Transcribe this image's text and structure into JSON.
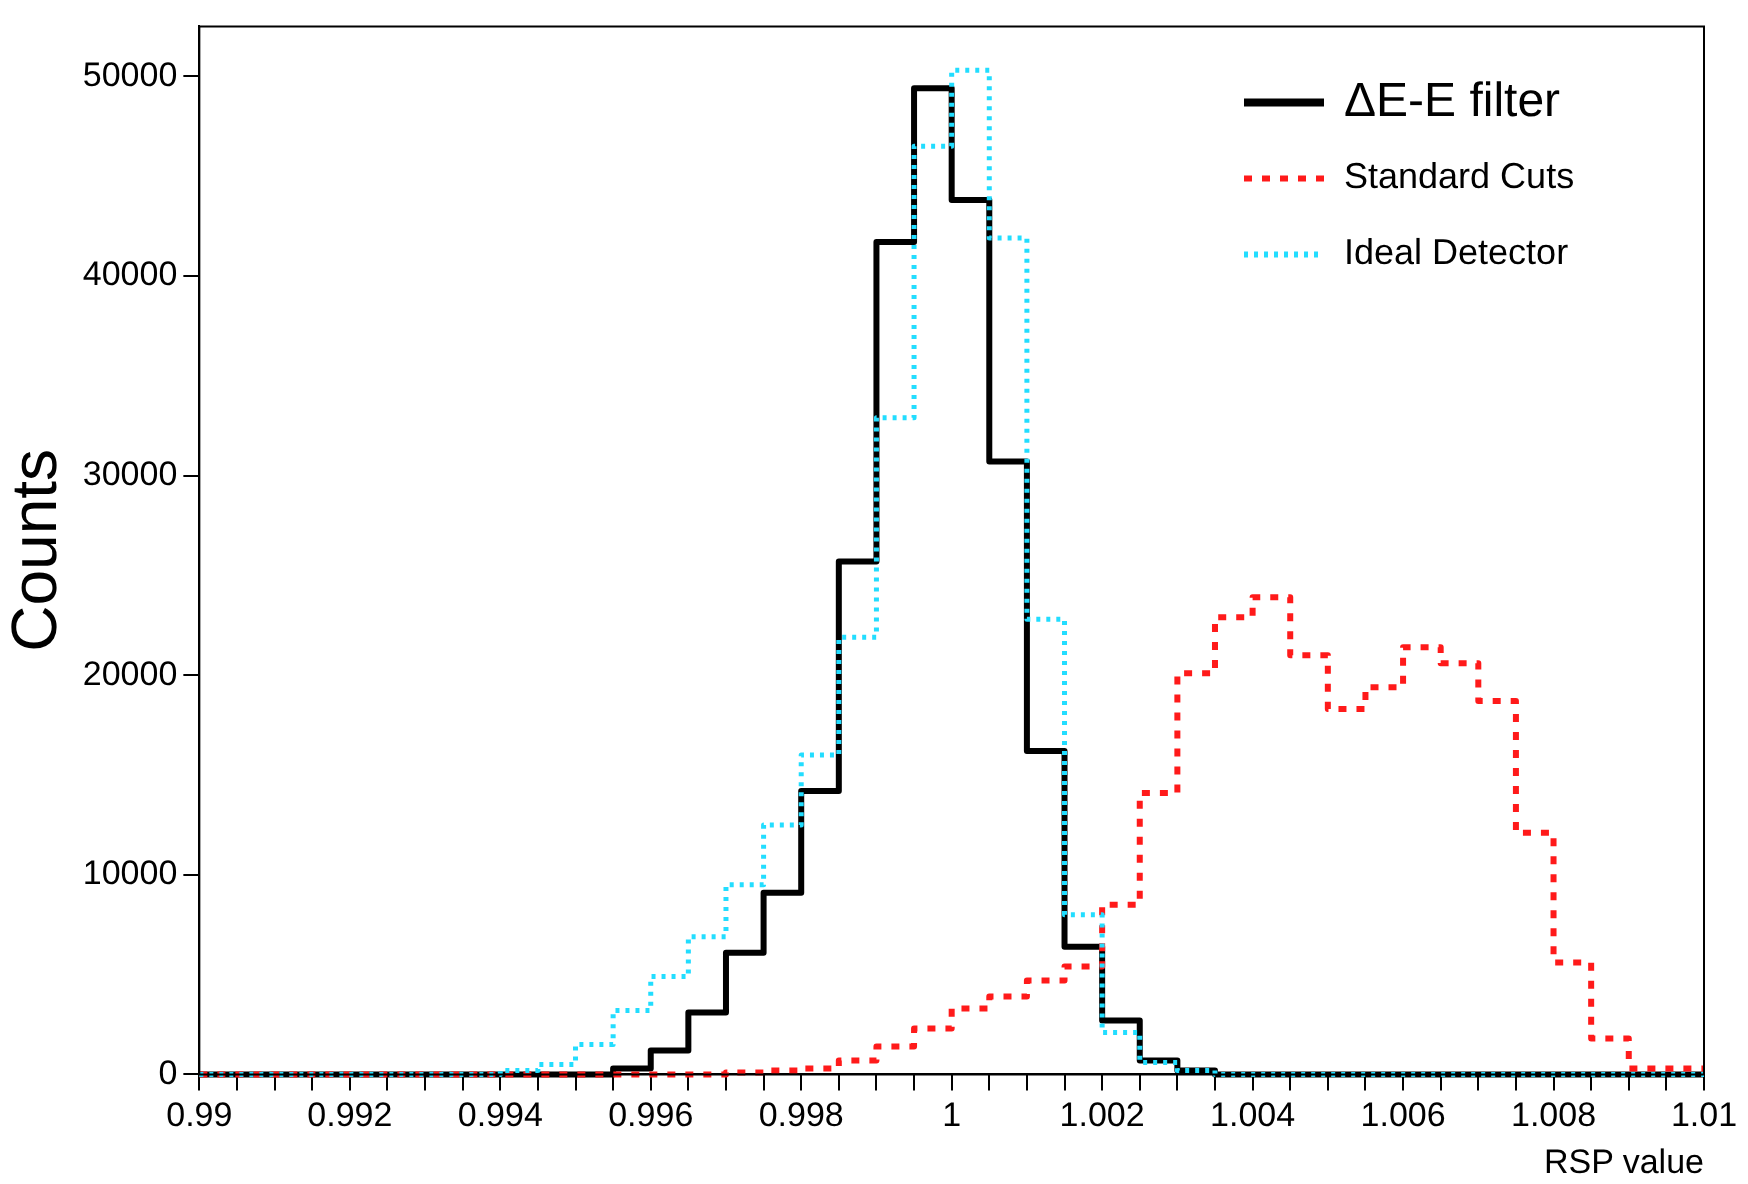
{
  "chart_data": {
    "type": "step",
    "xlabel": "RSP value",
    "ylabel": "Counts",
    "x": [
      0.99,
      0.9905,
      0.991,
      0.9915,
      0.992,
      0.9925,
      0.993,
      0.9935,
      0.994,
      0.9945,
      0.995,
      0.9955,
      0.996,
      0.9965,
      0.997,
      0.9975,
      0.998,
      0.9985,
      0.999,
      0.9995,
      1,
      1.0005,
      1.001,
      1.0015,
      1.002,
      1.0025,
      1.003,
      1.0035,
      1.004,
      1.0045,
      1.005,
      1.0055,
      1.006,
      1.0065,
      1.007,
      1.0075,
      1.008,
      1.0085,
      1.009,
      1.0095,
      1.01
    ],
    "series": [
      {
        "name": "ΔE-E filter",
        "color": "#000000",
        "line_style": "solid",
        "values": [
          0,
          0,
          0,
          0,
          0,
          0,
          0,
          0,
          0,
          0,
          0,
          0,
          300,
          1200,
          3100,
          6100,
          9100,
          14200,
          25700,
          41700,
          49400,
          43800,
          30700,
          16200,
          6400,
          2700,
          700,
          200,
          0,
          0,
          0,
          0,
          0,
          0,
          0,
          0,
          0,
          0,
          0,
          0,
          0
        ]
      },
      {
        "name": "Standard Cuts",
        "color": "#ff1a1a",
        "line_style": "dashed",
        "values": [
          0,
          0,
          0,
          0,
          0,
          0,
          0,
          0,
          0,
          0,
          0,
          0,
          0,
          0,
          0,
          100,
          200,
          300,
          700,
          1400,
          2300,
          3300,
          3900,
          4700,
          5400,
          8500,
          14100,
          20100,
          22900,
          23900,
          21000,
          18300,
          19400,
          21400,
          20600,
          18700,
          12100,
          5600,
          1800,
          300,
          300
        ]
      },
      {
        "name": "Ideal Detector",
        "color": "#22ddff",
        "line_style": "dotted",
        "values": [
          0,
          0,
          0,
          0,
          0,
          0,
          0,
          0,
          0,
          200,
          500,
          1500,
          3200,
          4900,
          6900,
          9500,
          12500,
          16000,
          21900,
          32900,
          46500,
          50300,
          41900,
          22800,
          8000,
          2100,
          600,
          200,
          0,
          0,
          0,
          0,
          0,
          0,
          0,
          0,
          0,
          0,
          0,
          0,
          0
        ]
      }
    ],
    "xlim": [
      0.99,
      1.01
    ],
    "xticks": [
      0.99,
      {
        "value": 0.9905,
        "label": null
      },
      {
        "value": 0.991,
        "label": null
      },
      {
        "value": 0.9915,
        "label": null
      },
      0.992,
      {
        "value": 0.9925,
        "label": null
      },
      {
        "value": 0.993,
        "label": null
      },
      {
        "value": 0.9935,
        "label": null
      },
      0.994,
      {
        "value": 0.9945,
        "label": null
      },
      {
        "value": 0.995,
        "label": null
      },
      {
        "value": 0.9955,
        "label": null
      },
      0.996,
      {
        "value": 0.9965,
        "label": null
      },
      {
        "value": 0.997,
        "label": null
      },
      {
        "value": 0.9975,
        "label": null
      },
      0.998,
      {
        "value": 0.9985,
        "label": null
      },
      {
        "value": 0.999,
        "label": null
      },
      {
        "value": 0.9995,
        "label": null
      },
      1,
      {
        "value": 1.0005,
        "label": null
      },
      {
        "value": 1.001,
        "label": null
      },
      {
        "value": 1.0015,
        "label": null
      },
      1.002,
      {
        "value": 1.0025,
        "label": null
      },
      {
        "value": 1.003,
        "label": null
      },
      {
        "value": 1.0035,
        "label": null
      },
      1.004,
      {
        "value": 1.0045,
        "label": null
      },
      {
        "value": 1.005,
        "label": null
      },
      {
        "value": 1.0055,
        "label": null
      },
      1.006,
      {
        "value": 1.0065,
        "label": null
      },
      {
        "value": 1.007,
        "label": null
      },
      {
        "value": 1.0075,
        "label": null
      },
      1.008,
      {
        "value": 1.0085,
        "label": null
      },
      {
        "value": 1.009,
        "label": null
      },
      {
        "value": 1.0095,
        "label": null
      },
      1.01
    ],
    "ylim": [
      0,
      52500
    ],
    "yticks": [
      0,
      10000,
      20000,
      30000,
      40000,
      50000
    ],
    "grid": false,
    "legend": "top right",
    "marker": "none"
  }
}
